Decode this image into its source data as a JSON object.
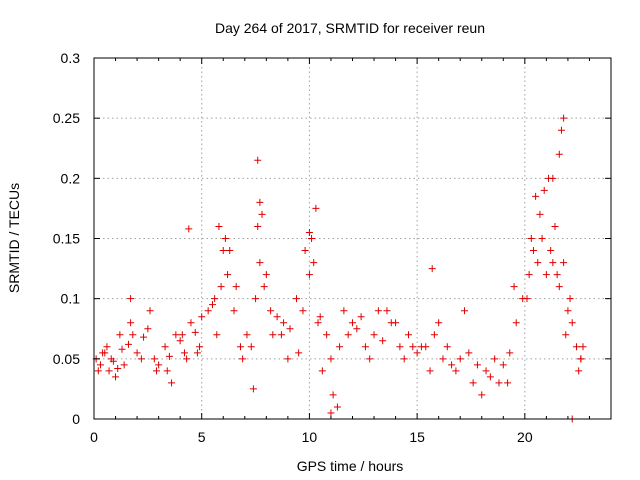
{
  "chart_data": {
    "type": "scatter",
    "title": "Day 264 of 2017, SRMTID for receiver reun",
    "xlabel": "GPS time / hours",
    "ylabel": "SRMTID / TECUs",
    "xlim": [
      0,
      24
    ],
    "ylim": [
      0,
      0.3
    ],
    "x_ticks": [
      0,
      5,
      10,
      15,
      20
    ],
    "x_tick_labels": [
      "0",
      "5",
      "10",
      "15",
      "20"
    ],
    "y_ticks": [
      0,
      0.05,
      0.1,
      0.15,
      0.2,
      0.25,
      0.3
    ],
    "y_tick_labels": [
      "0",
      "0.05",
      "0.1",
      "0.15",
      "0.2",
      "0.25",
      "0.3"
    ],
    "grid": true,
    "marker": "plus",
    "marker_color": "#e00000",
    "series": [
      {
        "name": "SRMTID",
        "x": [
          0.1,
          0.3,
          0.5,
          0.7,
          0.9,
          1.1,
          1.3,
          1.6,
          1.8,
          2.0,
          2.3,
          2.5,
          2.8,
          3.0,
          3.3,
          3.5,
          3.8,
          4.0,
          4.2,
          4.5,
          4.7,
          5.0,
          5.3,
          5.6,
          5.9,
          6.2,
          6.5,
          6.8,
          7.1,
          7.5,
          7.7,
          7.9,
          8.2,
          8.5,
          8.8,
          9.1,
          9.4,
          9.7,
          10.0,
          10.2,
          10.5,
          10.8,
          11.0,
          11.1,
          11.4,
          11.8,
          12.2,
          12.6,
          13.0,
          13.4,
          13.8,
          14.2,
          14.6,
          15.0,
          15.4,
          15.8,
          16.2,
          16.6,
          17.0,
          17.4,
          17.8,
          18.2,
          18.6,
          19.0,
          19.3,
          19.6,
          19.9,
          20.2,
          20.4,
          20.6,
          20.8,
          21.0,
          21.2,
          21.4,
          21.6,
          21.8,
          22.0,
          22.2,
          22.4,
          22.6,
          22.7,
          0.2,
          0.6,
          1.0,
          1.4,
          2.2,
          2.9,
          3.6,
          4.3,
          4.9,
          5.7,
          6.3,
          6.9,
          7.6,
          8.3,
          9.0,
          9.8,
          10.4,
          11.3,
          12.0,
          12.8,
          13.6,
          14.4,
          15.2,
          16.0,
          16.8,
          17.6,
          18.4,
          19.2,
          20.1,
          20.7,
          21.3,
          21.9,
          22.5,
          0.4,
          0.8,
          1.2,
          1.7,
          2.6,
          3.4,
          4.1,
          4.8,
          5.5,
          6.0,
          6.6,
          7.3,
          7.7,
          8.0,
          8.7,
          9.5,
          10.1,
          10.6,
          11.6,
          12.4,
          13.2,
          14.0,
          14.8,
          15.6,
          16.4,
          17.2,
          18.0,
          18.8,
          19.5,
          20.3,
          20.9,
          21.5,
          22.1,
          22.6,
          5.8,
          6.1,
          7.6,
          7.8,
          10.0,
          10.3,
          15.7,
          20.5,
          21.1,
          21.7,
          21.8,
          21.6,
          21.3,
          11.0,
          22.2,
          4.4,
          1.7,
          7.4
        ],
        "y": [
          0.05,
          0.045,
          0.055,
          0.04,
          0.048,
          0.042,
          0.058,
          0.062,
          0.07,
          0.055,
          0.068,
          0.075,
          0.05,
          0.045,
          0.06,
          0.052,
          0.07,
          0.065,
          0.055,
          0.08,
          0.072,
          0.085,
          0.09,
          0.1,
          0.11,
          0.12,
          0.09,
          0.06,
          0.07,
          0.1,
          0.13,
          0.11,
          0.09,
          0.085,
          0.08,
          0.075,
          0.1,
          0.09,
          0.12,
          0.13,
          0.085,
          0.07,
          0.05,
          0.02,
          0.06,
          0.07,
          0.075,
          0.06,
          0.07,
          0.065,
          0.08,
          0.06,
          0.07,
          0.055,
          0.06,
          0.07,
          0.05,
          0.045,
          0.05,
          0.055,
          0.045,
          0.04,
          0.05,
          0.045,
          0.055,
          0.08,
          0.1,
          0.12,
          0.14,
          0.13,
          0.15,
          0.12,
          0.14,
          0.16,
          0.11,
          0.13,
          0.09,
          0.08,
          0.06,
          0.05,
          0.06,
          0.04,
          0.06,
          0.035,
          0.045,
          0.05,
          0.04,
          0.03,
          0.05,
          0.06,
          0.07,
          0.14,
          0.05,
          0.16,
          0.07,
          0.05,
          0.14,
          0.08,
          0.01,
          0.08,
          0.05,
          0.09,
          0.05,
          0.06,
          0.08,
          0.04,
          0.03,
          0.035,
          0.03,
          0.1,
          0.17,
          0.2,
          0.07,
          0.04,
          0.055,
          0.05,
          0.07,
          0.08,
          0.09,
          0.04,
          0.07,
          0.055,
          0.095,
          0.14,
          0.11,
          0.06,
          0.18,
          0.12,
          0.07,
          0.055,
          0.15,
          0.04,
          0.09,
          0.085,
          0.09,
          0.08,
          0.06,
          0.04,
          0.06,
          0.09,
          0.02,
          0.03,
          0.11,
          0.15,
          0.19,
          0.12,
          0.1,
          0.05,
          0.16,
          0.15,
          0.215,
          0.17,
          0.155,
          0.175,
          0.125,
          0.185,
          0.2,
          0.24,
          0.25,
          0.22,
          0.13,
          0.005,
          0.0,
          0.158,
          0.1,
          0.025
        ]
      }
    ]
  }
}
